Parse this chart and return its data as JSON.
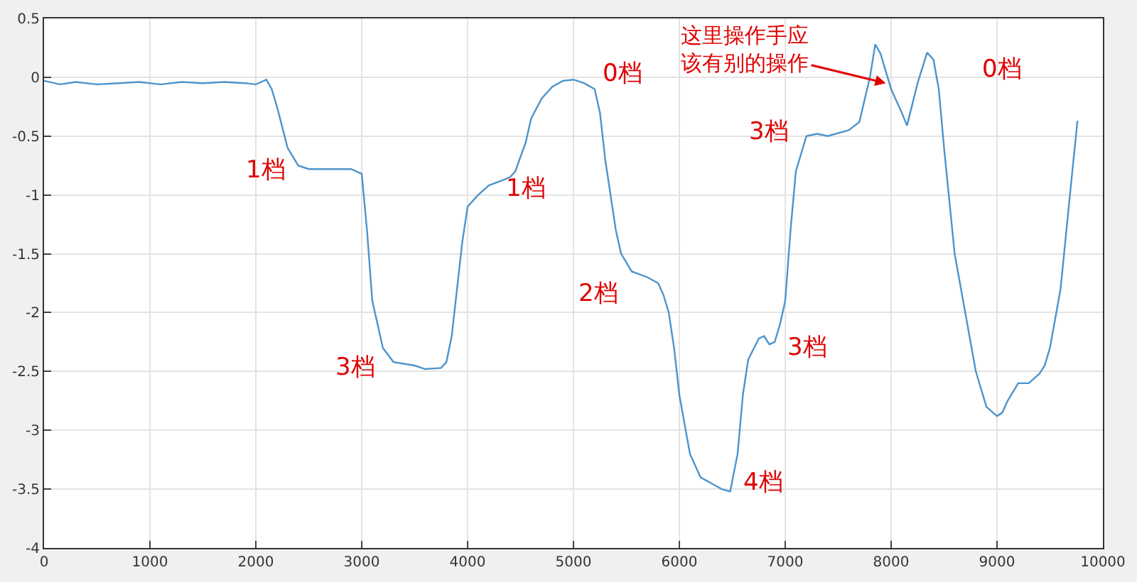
{
  "chart_data": {
    "type": "line",
    "x": [
      0,
      150,
      300,
      500,
      700,
      900,
      1100,
      1300,
      1500,
      1700,
      1900,
      2000,
      2100,
      2150,
      2200,
      2300,
      2400,
      2500,
      2700,
      2900,
      3000,
      3050,
      3100,
      3200,
      3300,
      3500,
      3600,
      3750,
      3800,
      3850,
      3900,
      3950,
      4000,
      4100,
      4200,
      4400,
      4450,
      4550,
      4600,
      4700,
      4800,
      4900,
      5000,
      5100,
      5200,
      5250,
      5300,
      5400,
      5450,
      5550,
      5700,
      5800,
      5850,
      5900,
      5950,
      6000,
      6100,
      6200,
      6300,
      6400,
      6480,
      6550,
      6600,
      6650,
      6750,
      6800,
      6850,
      6900,
      6950,
      7000,
      7050,
      7100,
      7200,
      7300,
      7400,
      7600,
      7700,
      7800,
      7850,
      7900,
      8000,
      8100,
      8150,
      8250,
      8340,
      8400,
      8450,
      8500,
      8600,
      8700,
      8800,
      8900,
      9000,
      9050,
      9100,
      9200,
      9300,
      9400,
      9450,
      9500,
      9600,
      9700,
      9760
    ],
    "series": [
      {
        "color": "#4d94cc",
        "values": [
          -0.03,
          -0.06,
          -0.04,
          -0.06,
          -0.05,
          -0.04,
          -0.06,
          -0.04,
          -0.05,
          -0.04,
          -0.05,
          -0.06,
          -0.02,
          -0.1,
          -0.25,
          -0.6,
          -0.75,
          -0.78,
          -0.78,
          -0.78,
          -0.82,
          -1.3,
          -1.9,
          -2.3,
          -2.42,
          -2.45,
          -2.48,
          -2.47,
          -2.42,
          -2.2,
          -1.8,
          -1.4,
          -1.1,
          -1.0,
          -0.92,
          -0.85,
          -0.8,
          -0.55,
          -0.35,
          -0.18,
          -0.08,
          -0.03,
          -0.02,
          -0.05,
          -0.1,
          -0.3,
          -0.7,
          -1.3,
          -1.5,
          -1.65,
          -1.7,
          -1.75,
          -1.85,
          -2.0,
          -2.3,
          -2.7,
          -3.2,
          -3.4,
          -3.45,
          -3.5,
          -3.52,
          -3.2,
          -2.7,
          -2.4,
          -2.22,
          -2.2,
          -2.27,
          -2.25,
          -2.1,
          -1.9,
          -1.3,
          -0.8,
          -0.5,
          -0.48,
          -0.5,
          -0.45,
          -0.38,
          0.0,
          0.28,
          0.2,
          -0.1,
          -0.3,
          -0.41,
          -0.05,
          0.21,
          0.15,
          -0.1,
          -0.6,
          -1.5,
          -2.0,
          -2.5,
          -2.8,
          -2.88,
          -2.85,
          -2.75,
          -2.6,
          -2.6,
          -2.52,
          -2.45,
          -2.3,
          -1.8,
          -0.9,
          -0.37
        ]
      }
    ],
    "xlim": [
      0,
      10000
    ],
    "xticks": [
      0,
      1000,
      2000,
      3000,
      4000,
      5000,
      6000,
      7000,
      8000,
      9000,
      10000
    ],
    "ylim": [
      -4,
      0.5
    ],
    "yticks": [
      -4,
      -3.5,
      -3,
      -2.5,
      -2,
      -1.5,
      -1,
      -0.5,
      0,
      0.5
    ],
    "grid": true,
    "marker": "none",
    "line_style": "solid",
    "annotations": [
      {
        "text": "1档",
        "x": 2500,
        "y": -0.78
      },
      {
        "text": "3档",
        "x": 3300,
        "y": -2.42
      },
      {
        "text": "1档",
        "x": 4400,
        "y": -0.85
      },
      {
        "text": "0档",
        "x": 5000,
        "y": -0.02
      },
      {
        "text": "2档",
        "x": 5550,
        "y": -1.65
      },
      {
        "text": "4档",
        "x": 6480,
        "y": -3.52
      },
      {
        "text": "3档",
        "x": 6900,
        "y": -2.25
      },
      {
        "text": "3档",
        "x": 7200,
        "y": -0.5
      },
      {
        "text": "0档",
        "x": 8340,
        "y": 0.21
      },
      {
        "text": "这里操作手应该有别的操作",
        "x": 7950,
        "y": -0.05
      }
    ]
  }
}
